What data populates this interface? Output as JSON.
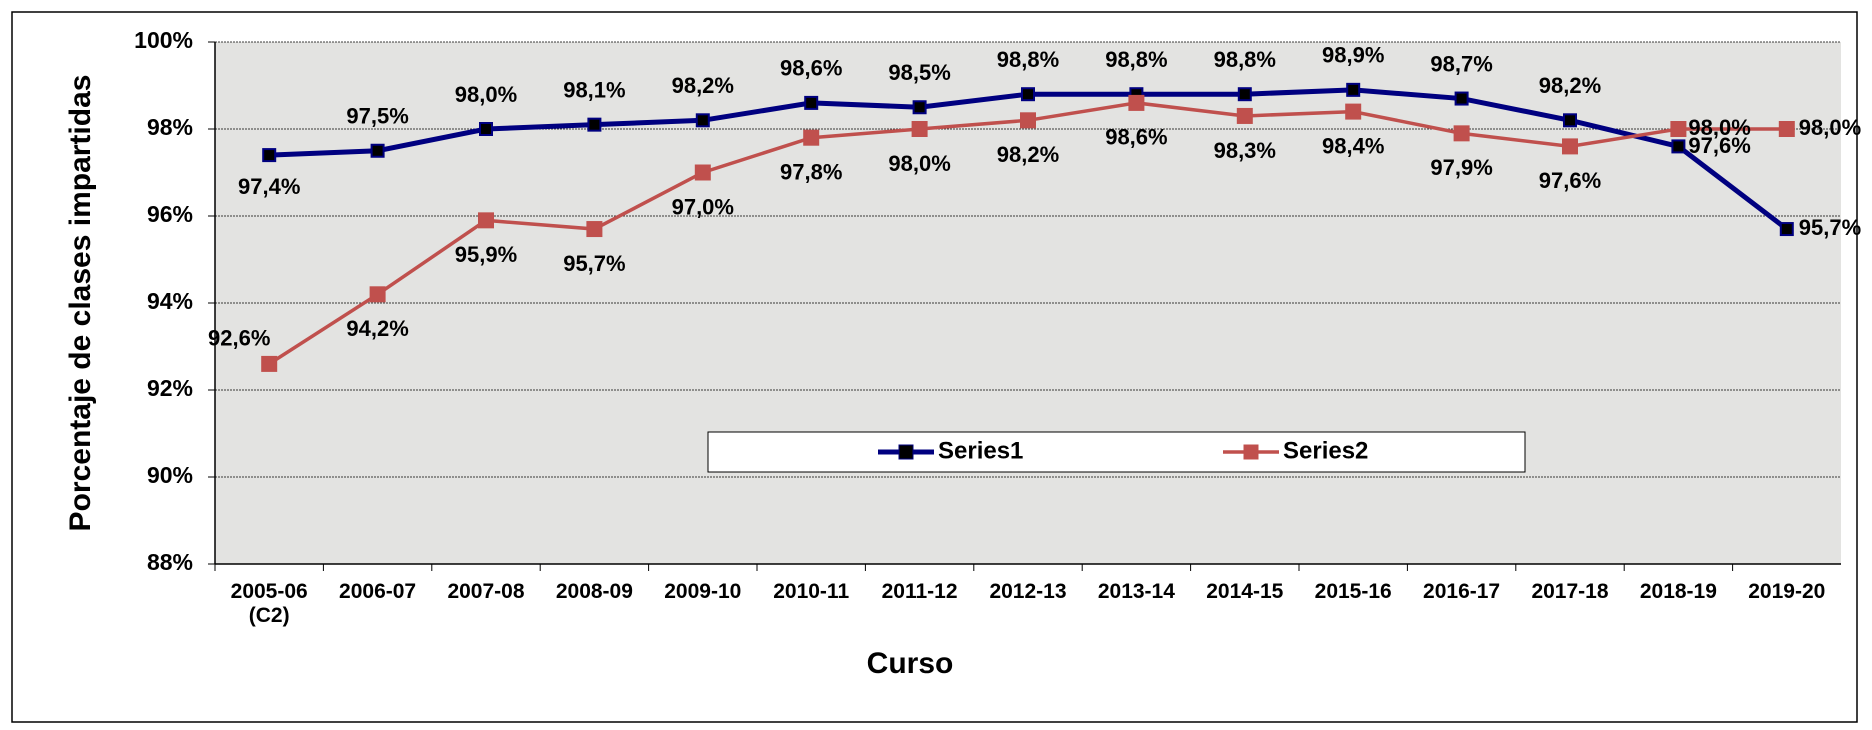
{
  "chart_data": {
    "type": "line",
    "x_label": "Curso",
    "y_label": "Porcentaje de clases impartidas",
    "categories": [
      "2005-06\n(C2)",
      "2006-07",
      "2007-08",
      "2008-09",
      "2009-10",
      "2010-11",
      "2011-12",
      "2012-13",
      "2013-14",
      "2014-15",
      "2015-16",
      "2016-17",
      "2017-18",
      "2018-19",
      "2019-20"
    ],
    "series": [
      {
        "name": "Series1",
        "color": "#000080",
        "values": [
          97.4,
          97.5,
          98.0,
          98.1,
          98.2,
          98.6,
          98.5,
          98.8,
          98.8,
          98.8,
          98.9,
          98.7,
          98.2,
          97.6,
          95.7
        ],
        "value_labels": [
          "97,4%",
          "97,5%",
          "98,0%",
          "98,1%",
          "98,2%",
          "98,6%",
          "98,5%",
          "98,8%",
          "98,8%",
          "98,8%",
          "98,9%",
          "98,7%",
          "98,2%",
          "97,6%",
          "95,7%"
        ]
      },
      {
        "name": "Series2",
        "color": "#c0504d",
        "values": [
          92.6,
          94.2,
          95.9,
          95.7,
          97.0,
          97.8,
          98.0,
          98.2,
          98.6,
          98.3,
          98.4,
          97.9,
          97.6,
          98.0,
          98.0
        ],
        "value_labels": [
          "92,6%",
          "94,2%",
          "95,9%",
          "95,7%",
          "97,0%",
          "97,8%",
          "98,0%",
          "98,2%",
          "98,6%",
          "98,3%",
          "98,4%",
          "97,9%",
          "97,6%",
          "98,0%",
          "98,0%"
        ]
      }
    ],
    "ylim": [
      88,
      100
    ],
    "yticks": [
      {
        "value": 88,
        "label": "88%"
      },
      {
        "value": 90,
        "label": "90%"
      },
      {
        "value": 92,
        "label": "92%"
      },
      {
        "value": 94,
        "label": "94%"
      },
      {
        "value": 96,
        "label": "96%"
      },
      {
        "value": 98,
        "label": "98%"
      },
      {
        "value": 100,
        "label": "100%"
      }
    ],
    "grid": true,
    "legend": "center"
  }
}
